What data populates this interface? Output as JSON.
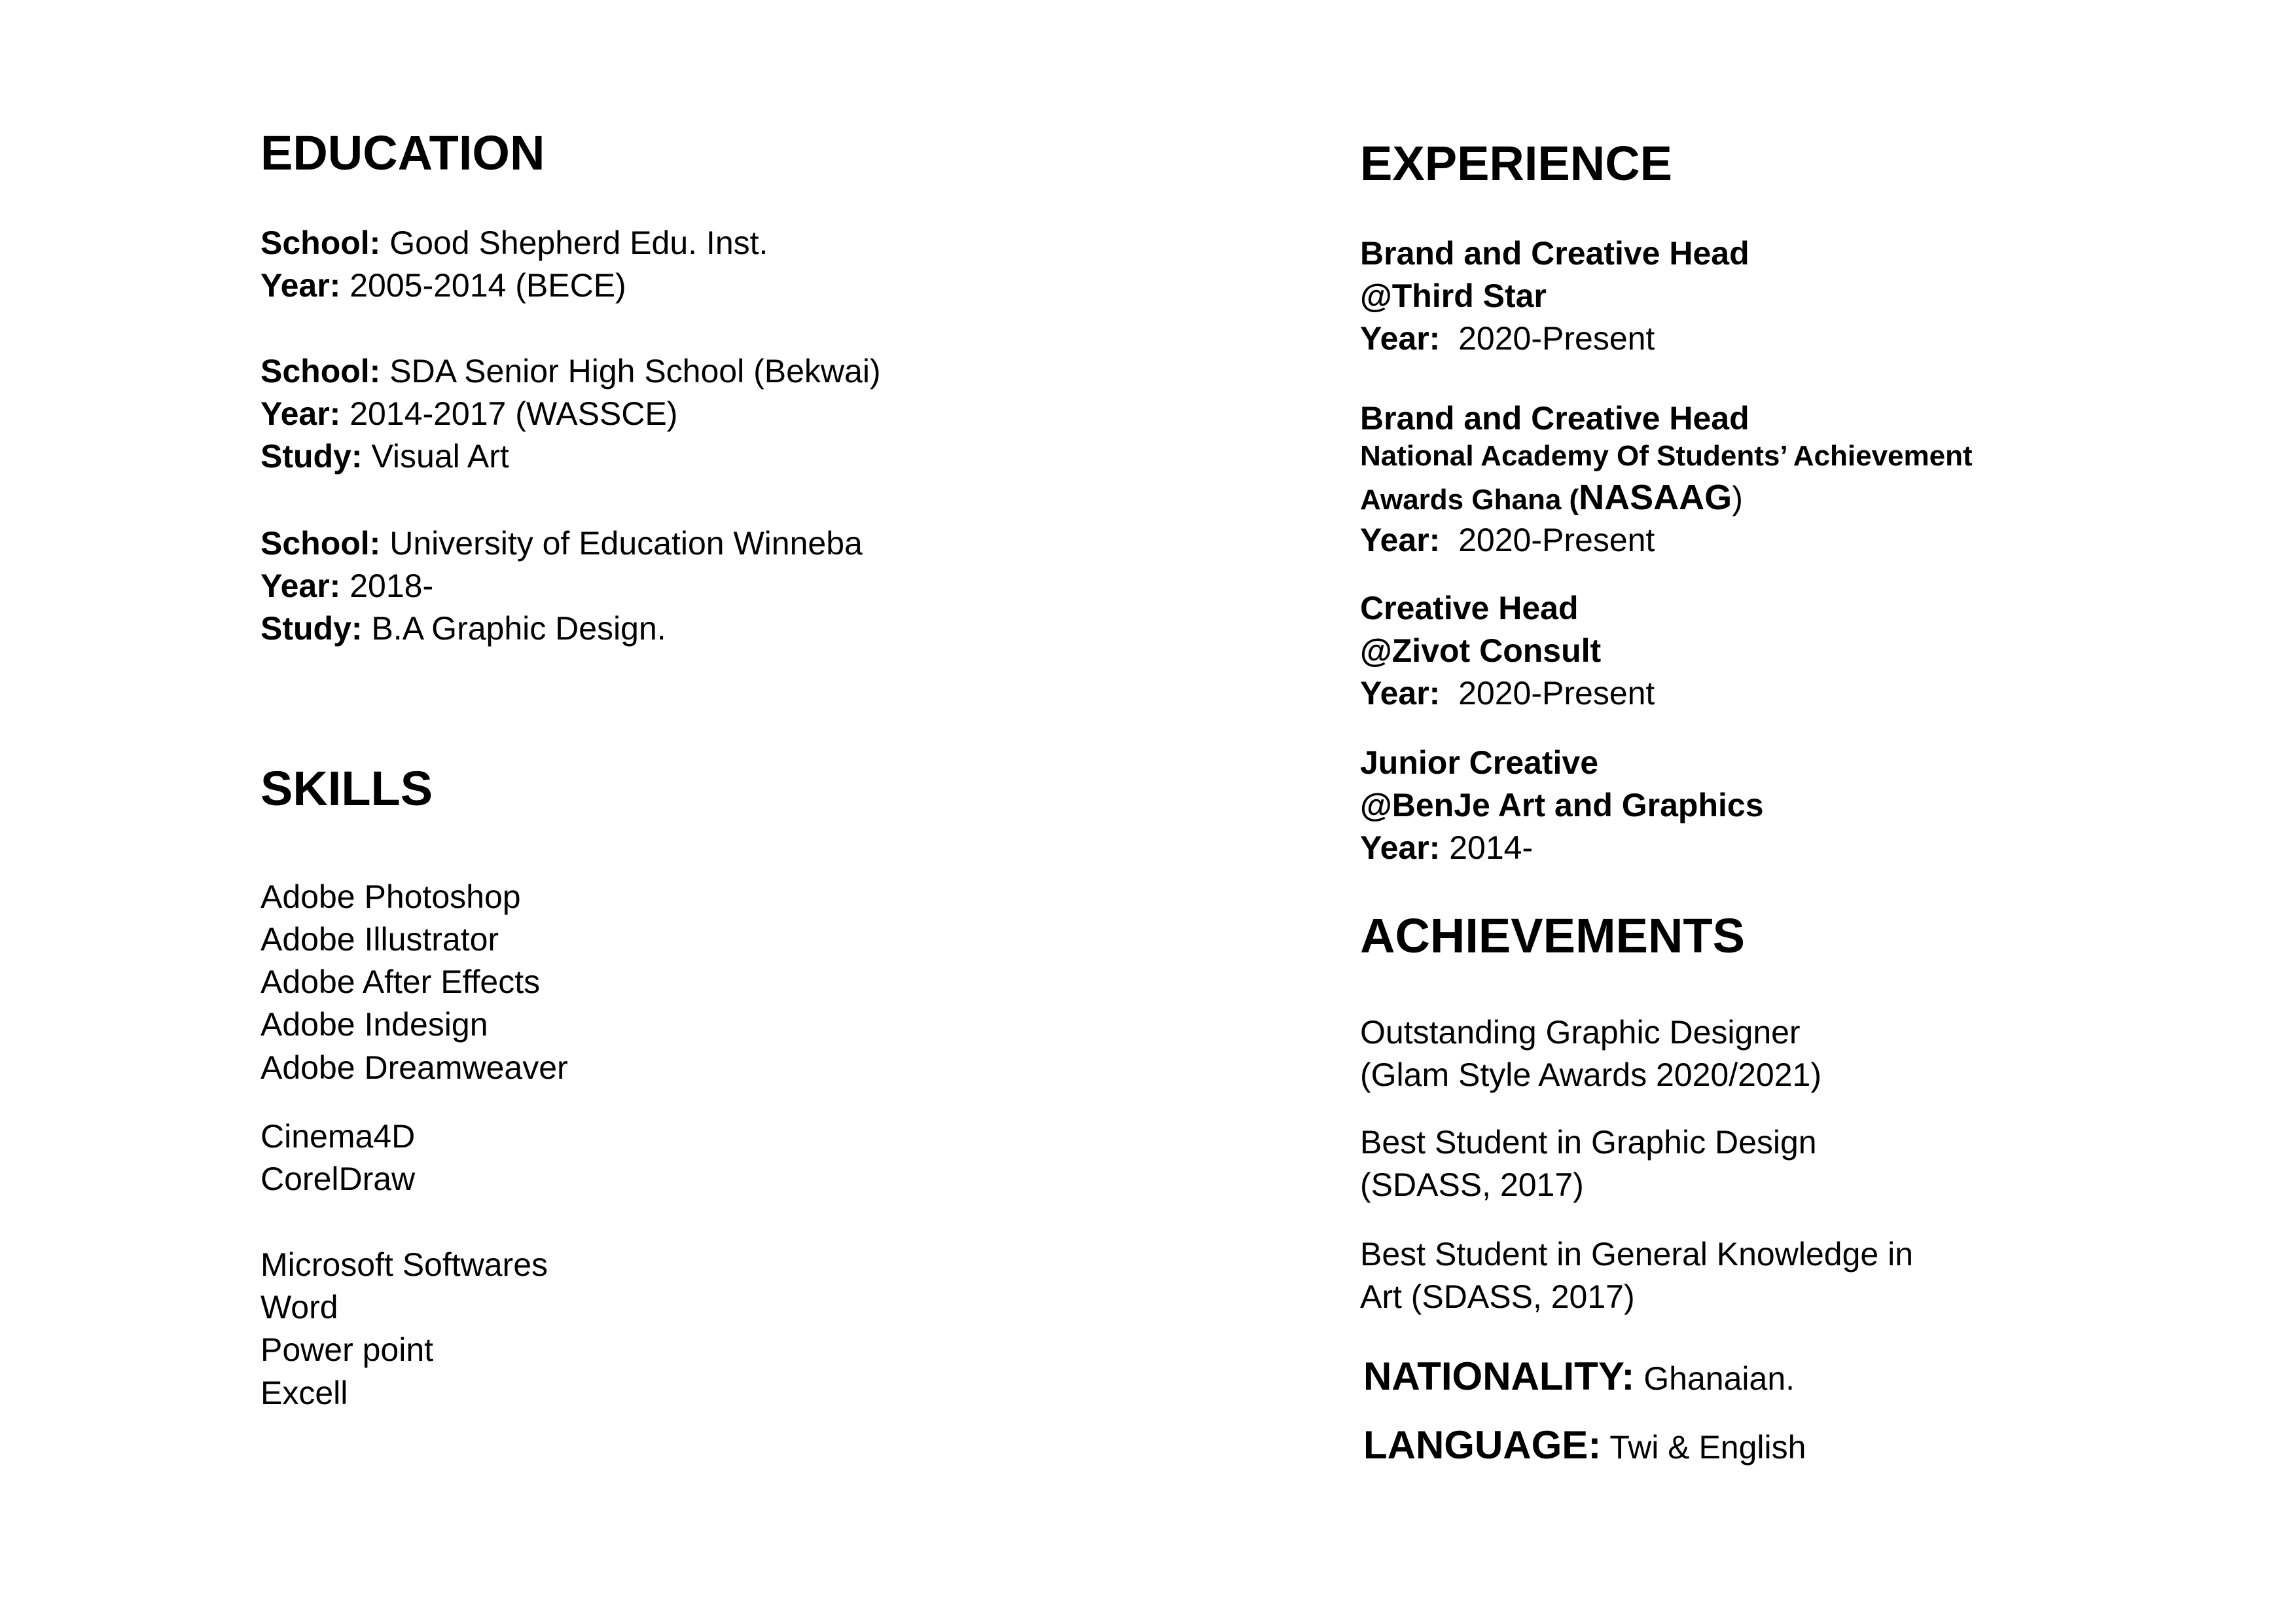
{
  "education": {
    "heading": "EDUCATION",
    "entries": [
      {
        "school_label": "School:",
        "school": "Good Shepherd Edu. Inst.",
        "year_label": "Year:",
        "year": "2005-2014 (BECE)"
      },
      {
        "school_label": "School:",
        "school": "SDA Senior High School (Bekwai)",
        "year_label": "Year:",
        "year": "2014-2017 (WASSCE)",
        "study_label": "Study:",
        "study": "Visual Art"
      },
      {
        "school_label": "School:",
        "school": "University of Education Winneba",
        "year_label": "Year:",
        "year": "2018-",
        "study_label": "Study:",
        "study": "B.A Graphic Design."
      }
    ]
  },
  "skills": {
    "heading": "SKILLS",
    "items": [
      "Adobe Photoshop",
      "Adobe Illustrator",
      "Adobe After Effects",
      "Adobe Indesign",
      "Adobe Dreamweaver",
      "Cinema4D",
      "CorelDraw",
      "Microsoft Softwares",
      "Word",
      "Power point",
      "Excell"
    ]
  },
  "experience": {
    "heading": "EXPERIENCE",
    "entries": [
      {
        "title": "Brand and Creative Head",
        "org": "@Third Star",
        "year_label": "Year:",
        "year": "2020-Present"
      },
      {
        "title": "Brand and Creative Head",
        "org_line1": "National Academy Of Students’ Achievement",
        "org_line2": "Awards Ghana (",
        "org_acronym": "NASAAG",
        "org_close": ")",
        "year_label": "Year:",
        "year": "2020-Present"
      },
      {
        "title": "Creative Head",
        "org": "@Zivot Consult",
        "year_label": "Year:",
        "year": "2020-Present"
      },
      {
        "title": "Junior Creative",
        "org": "@BenJe Art and Graphics",
        "year_label": "Year:",
        "year": "2014-"
      }
    ]
  },
  "achievements": {
    "heading": "ACHIEVEMENTS",
    "items": [
      [
        "Outstanding Graphic Designer",
        "(Glam Style Awards 2020/2021)"
      ],
      [
        "Best Student in Graphic Design",
        "(SDASS, 2017)"
      ],
      [
        "Best Student in General Knowledge in",
        "Art (SDASS, 2017)"
      ]
    ]
  },
  "nationality": {
    "label": "NATIONALITY:",
    "value": "Ghanaian."
  },
  "language": {
    "label": "LANGUAGE:",
    "value": "Twi & English"
  }
}
